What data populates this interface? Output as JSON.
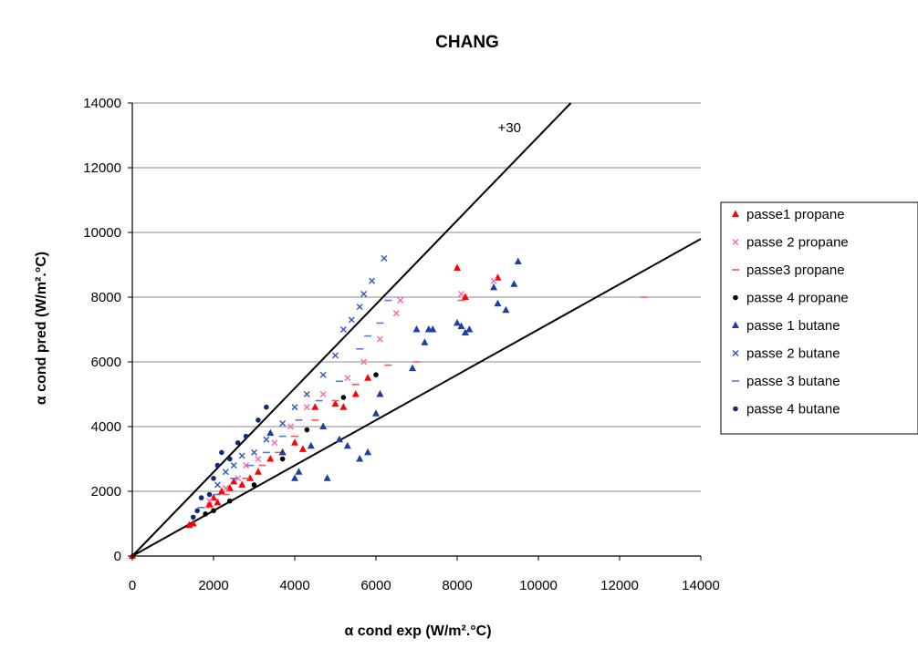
{
  "chart_data": {
    "type": "scatter",
    "title": "CHANG",
    "xlabel": "α cond exp (W/m².°C)",
    "ylabel": "α cond pred (W/m².°C)",
    "xlim": [
      0,
      14000
    ],
    "ylim": [
      0,
      14000
    ],
    "x_ticks": [
      "0",
      "2000",
      "4000",
      "6000",
      "8000",
      "10000",
      "12000",
      "14000"
    ],
    "y_ticks": [
      "0",
      "2000",
      "4000",
      "6000",
      "8000",
      "10000",
      "12000",
      "14000"
    ],
    "grid": "horizontal",
    "legend_position": "right",
    "annotations": [
      {
        "text": "+30",
        "x": 9000,
        "y": 13100
      }
    ],
    "reference_lines": [
      {
        "x": [
          0,
          10800
        ],
        "y": [
          0,
          14000
        ]
      },
      {
        "x": [
          0,
          14000
        ],
        "y": [
          0,
          9800
        ]
      }
    ],
    "series": [
      {
        "name": "passe1 propane",
        "marker": "triangle",
        "color": "#ff0000",
        "points": [
          [
            0,
            0
          ],
          [
            1400,
            950
          ],
          [
            1500,
            1000
          ],
          [
            1900,
            1600
          ],
          [
            2000,
            1800
          ],
          [
            2100,
            1650
          ],
          [
            2200,
            2000
          ],
          [
            2400,
            2100
          ],
          [
            2500,
            2300
          ],
          [
            2700,
            2200
          ],
          [
            2900,
            2400
          ],
          [
            3100,
            2600
          ],
          [
            3400,
            3000
          ],
          [
            3700,
            3200
          ],
          [
            4000,
            3500
          ],
          [
            4200,
            3300
          ],
          [
            4500,
            4600
          ],
          [
            5000,
            4700
          ],
          [
            5200,
            4600
          ],
          [
            5500,
            5000
          ],
          [
            5800,
            5500
          ],
          [
            6100,
            5000
          ],
          [
            8000,
            8900
          ],
          [
            8200,
            8000
          ],
          [
            9000,
            8600
          ]
        ]
      },
      {
        "name": "passe 2 propane",
        "marker": "x",
        "color": "#ff66aa",
        "points": [
          [
            1900,
            1700
          ],
          [
            2300,
            2100
          ],
          [
            2600,
            2400
          ],
          [
            2800,
            2800
          ],
          [
            3100,
            3000
          ],
          [
            3500,
            3500
          ],
          [
            3900,
            4000
          ],
          [
            4300,
            4600
          ],
          [
            4700,
            5000
          ],
          [
            5300,
            5500
          ],
          [
            5700,
            6000
          ],
          [
            6100,
            6700
          ],
          [
            6500,
            7500
          ],
          [
            6600,
            7900
          ],
          [
            8100,
            8100
          ],
          [
            8900,
            8500
          ]
        ]
      },
      {
        "name": "passe3 propane",
        "marker": "dash",
        "color": "#ff5555",
        "points": [
          [
            1900,
            1500
          ],
          [
            2300,
            1900
          ],
          [
            2800,
            2400
          ],
          [
            3200,
            2800
          ],
          [
            3600,
            3200
          ],
          [
            4000,
            3700
          ],
          [
            4500,
            4200
          ],
          [
            5000,
            4800
          ],
          [
            5500,
            5300
          ],
          [
            6300,
            5900
          ],
          [
            7000,
            6000
          ],
          [
            8100,
            7900
          ],
          [
            12600,
            8000
          ]
        ]
      },
      {
        "name": "passe 4 propane",
        "marker": "circle",
        "color": "#000000",
        "points": [
          [
            1800,
            1300
          ],
          [
            2000,
            1400
          ],
          [
            2400,
            1700
          ],
          [
            3000,
            2200
          ],
          [
            3700,
            3000
          ],
          [
            4300,
            3900
          ],
          [
            5200,
            4900
          ],
          [
            6000,
            5600
          ]
        ]
      },
      {
        "name": "passe 1 butane",
        "marker": "triangle",
        "color": "#1f3fa0",
        "points": [
          [
            3400,
            3800
          ],
          [
            3700,
            3200
          ],
          [
            4000,
            2400
          ],
          [
            4100,
            2600
          ],
          [
            4400,
            3400
          ],
          [
            4700,
            4000
          ],
          [
            4800,
            2400
          ],
          [
            5100,
            3600
          ],
          [
            5300,
            3400
          ],
          [
            5600,
            3000
          ],
          [
            5800,
            3200
          ],
          [
            6000,
            4400
          ],
          [
            6100,
            5000
          ],
          [
            6900,
            5800
          ],
          [
            7000,
            7000
          ],
          [
            7200,
            6600
          ],
          [
            7300,
            7000
          ],
          [
            7400,
            7000
          ],
          [
            8000,
            7200
          ],
          [
            8100,
            7100
          ],
          [
            8200,
            6900
          ],
          [
            8300,
            7000
          ],
          [
            8900,
            8300
          ],
          [
            9000,
            7800
          ],
          [
            9200,
            7600
          ],
          [
            9400,
            8400
          ],
          [
            9500,
            9100
          ]
        ]
      },
      {
        "name": "passe 2 butane",
        "marker": "x",
        "color": "#3355cc",
        "points": [
          [
            2100,
            2200
          ],
          [
            2300,
            2600
          ],
          [
            2500,
            2800
          ],
          [
            2700,
            3100
          ],
          [
            3000,
            3200
          ],
          [
            3300,
            3600
          ],
          [
            3700,
            4100
          ],
          [
            4000,
            4600
          ],
          [
            4300,
            5000
          ],
          [
            4700,
            5600
          ],
          [
            5000,
            6200
          ],
          [
            5200,
            7000
          ],
          [
            5400,
            7300
          ],
          [
            5600,
            7700
          ],
          [
            5700,
            8100
          ],
          [
            5900,
            8500
          ],
          [
            6200,
            9200
          ]
        ]
      },
      {
        "name": "passe 3 butane",
        "marker": "dash",
        "color": "#5577dd",
        "points": [
          [
            1700,
            1500
          ],
          [
            2100,
            1900
          ],
          [
            2500,
            2400
          ],
          [
            2900,
            2800
          ],
          [
            3300,
            3200
          ],
          [
            3700,
            3700
          ],
          [
            4100,
            4200
          ],
          [
            4600,
            4800
          ],
          [
            5100,
            5400
          ],
          [
            5600,
            6400
          ],
          [
            5800,
            6800
          ],
          [
            6100,
            7200
          ],
          [
            6300,
            7900
          ]
        ]
      },
      {
        "name": "passe 4 butane",
        "marker": "circle",
        "color": "#102a7a",
        "points": [
          [
            1500,
            1200
          ],
          [
            1600,
            1400
          ],
          [
            1700,
            1800
          ],
          [
            1900,
            1900
          ],
          [
            2000,
            2400
          ],
          [
            2100,
            2800
          ],
          [
            2200,
            3200
          ],
          [
            2400,
            3000
          ],
          [
            2600,
            3500
          ],
          [
            2800,
            3700
          ],
          [
            3100,
            4200
          ],
          [
            3300,
            4600
          ]
        ]
      }
    ]
  }
}
